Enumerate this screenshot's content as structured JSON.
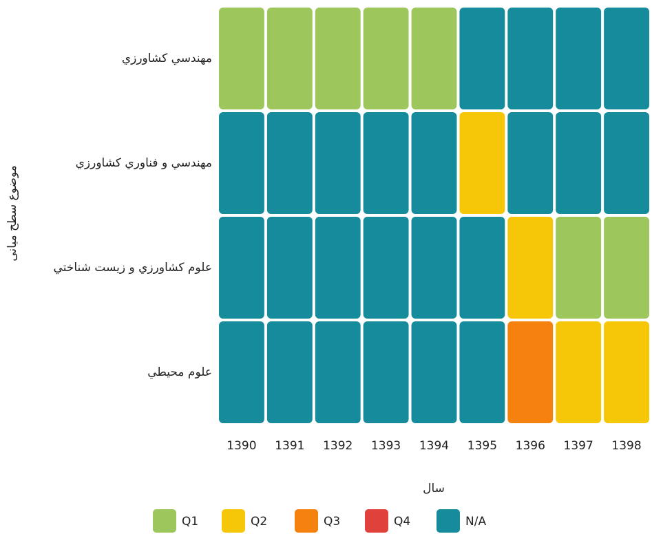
{
  "chart_data": {
    "type": "heatmap",
    "x": [
      "1390",
      "1391",
      "1392",
      "1393",
      "1394",
      "1395",
      "1396",
      "1397",
      "1398"
    ],
    "categories": [
      "مهندسي كشاورزي",
      "مهندسي و فناوري كشاورزي",
      "علوم كشاورزي و زيست شناختي",
      "علوم محيطي"
    ],
    "values": [
      [
        "Q1",
        "Q1",
        "Q1",
        "Q1",
        "Q1",
        "N/A",
        "N/A",
        "N/A",
        "N/A"
      ],
      [
        "N/A",
        "N/A",
        "N/A",
        "N/A",
        "N/A",
        "Q2",
        "N/A",
        "N/A",
        "N/A"
      ],
      [
        "N/A",
        "N/A",
        "N/A",
        "N/A",
        "N/A",
        "N/A",
        "Q2",
        "Q1",
        "Q1"
      ],
      [
        "N/A",
        "N/A",
        "N/A",
        "N/A",
        "N/A",
        "N/A",
        "Q3",
        "Q2",
        "Q2"
      ]
    ],
    "xlabel": "سال",
    "ylabel": "موضوع سطح میانی",
    "legend": [
      {
        "name": "Q1",
        "color": "#9dc75c"
      },
      {
        "name": "Q2",
        "color": "#f6c608"
      },
      {
        "name": "Q3",
        "color": "#f5820f"
      },
      {
        "name": "Q4",
        "color": "#e0413a"
      },
      {
        "name": "N/A",
        "color": "#168b9b"
      }
    ]
  }
}
